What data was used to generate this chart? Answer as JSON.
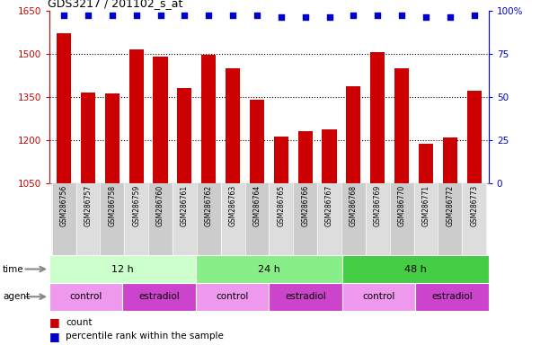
{
  "title": "GDS3217 / 201102_s_at",
  "samples": [
    "GSM286756",
    "GSM286757",
    "GSM286758",
    "GSM286759",
    "GSM286760",
    "GSM286761",
    "GSM286762",
    "GSM286763",
    "GSM286764",
    "GSM286765",
    "GSM286766",
    "GSM286767",
    "GSM286768",
    "GSM286769",
    "GSM286770",
    "GSM286771",
    "GSM286772",
    "GSM286773"
  ],
  "counts": [
    1570,
    1365,
    1360,
    1515,
    1490,
    1380,
    1495,
    1450,
    1340,
    1210,
    1230,
    1235,
    1385,
    1505,
    1450,
    1185,
    1207,
    1370
  ],
  "percentile_ranks": [
    97,
    97,
    97,
    97,
    97,
    97,
    97,
    97,
    97,
    96,
    96,
    96,
    97,
    97,
    97,
    96,
    96,
    97
  ],
  "ylim_left": [
    1050,
    1650
  ],
  "ylim_right": [
    0,
    100
  ],
  "yticks_left": [
    1050,
    1200,
    1350,
    1500,
    1650
  ],
  "yticks_right": [
    0,
    25,
    50,
    75,
    100
  ],
  "bar_color": "#cc0000",
  "dot_color": "#0000cc",
  "left_axis_color": "#cc0000",
  "right_axis_color": "#0000cc",
  "time_groups": [
    {
      "label": "12 h",
      "start": 0,
      "end": 6,
      "color": "#ccffcc"
    },
    {
      "label": "24 h",
      "start": 6,
      "end": 12,
      "color": "#88ee88"
    },
    {
      "label": "48 h",
      "start": 12,
      "end": 18,
      "color": "#44cc44"
    }
  ],
  "agent_groups": [
    {
      "label": "control",
      "start": 0,
      "end": 3,
      "color": "#ee99ee"
    },
    {
      "label": "estradiol",
      "start": 3,
      "end": 6,
      "color": "#cc44cc"
    },
    {
      "label": "control",
      "start": 6,
      "end": 9,
      "color": "#ee99ee"
    },
    {
      "label": "estradiol",
      "start": 9,
      "end": 12,
      "color": "#cc44cc"
    },
    {
      "label": "control",
      "start": 12,
      "end": 15,
      "color": "#ee99ee"
    },
    {
      "label": "estradiol",
      "start": 15,
      "end": 18,
      "color": "#cc44cc"
    }
  ],
  "bg_color": "#ffffff",
  "xtick_colors": [
    "#cccccc",
    "#dddddd"
  ]
}
